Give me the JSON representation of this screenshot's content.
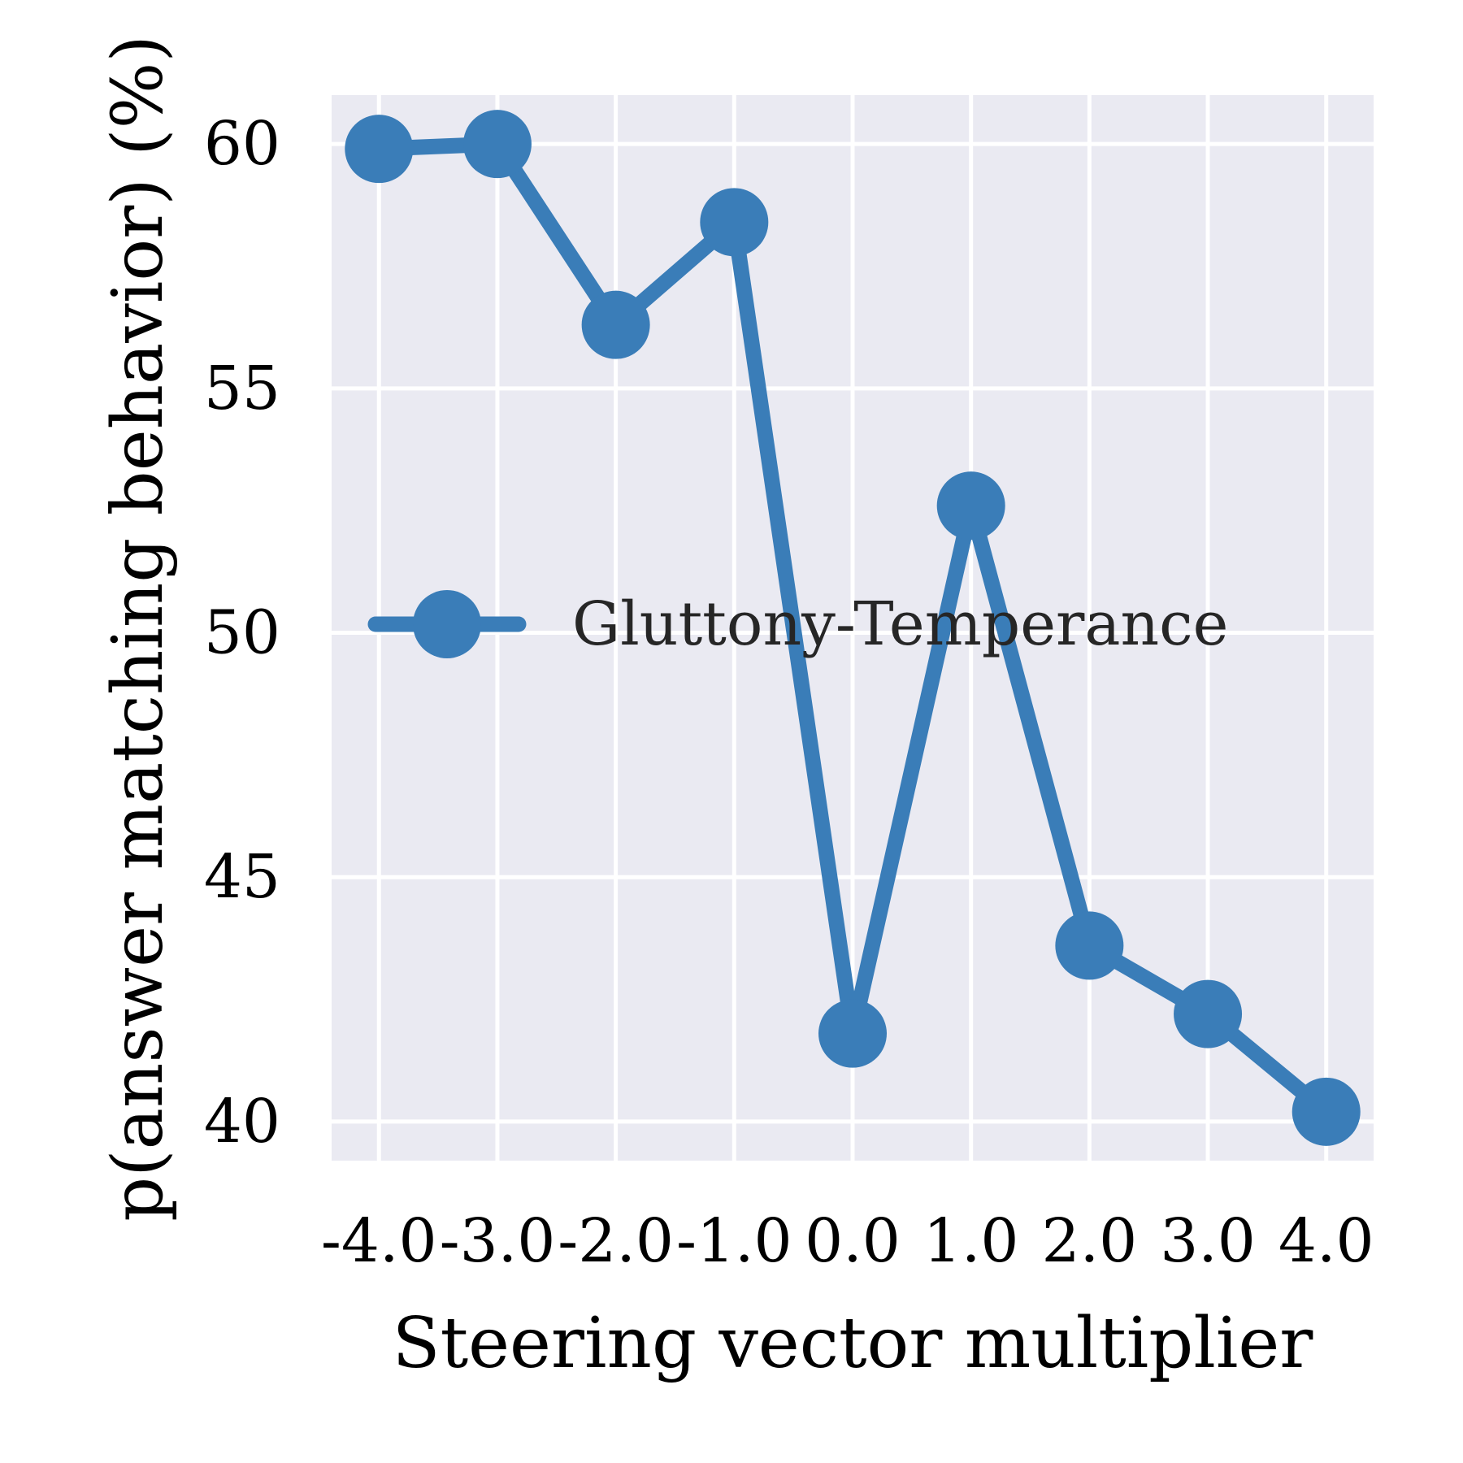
{
  "chart_data": {
    "type": "line",
    "xlabel": "Steering vector multiplier",
    "ylabel": "p(answer matching behavior) (%)",
    "x": [
      -4.0,
      -3.0,
      -2.0,
      -1.0,
      0.0,
      1.0,
      2.0,
      3.0,
      4.0
    ],
    "x_tick_labels": [
      "-4.0",
      "-3.0",
      "-2.0",
      "-1.0",
      "0.0",
      "1.0",
      "2.0",
      "3.0",
      "4.0"
    ],
    "y_ticks": [
      40,
      45,
      50,
      55,
      60
    ],
    "y_tick_labels": [
      "40",
      "45",
      "50",
      "55",
      "60"
    ],
    "xlim": [
      -4.4,
      4.4
    ],
    "ylim": [
      39.2,
      61.0
    ],
    "grid": true,
    "legend_position": "center-right",
    "series": [
      {
        "name": "Gluttony-Temperance",
        "color": "#3a7db8",
        "marker": "circle",
        "values": [
          59.9,
          60.0,
          56.3,
          58.4,
          41.8,
          52.6,
          43.6,
          42.2,
          40.2
        ]
      }
    ]
  },
  "colors": {
    "plot_background": "#eaeaf2",
    "grid": "#ffffff",
    "text": "#000000"
  }
}
